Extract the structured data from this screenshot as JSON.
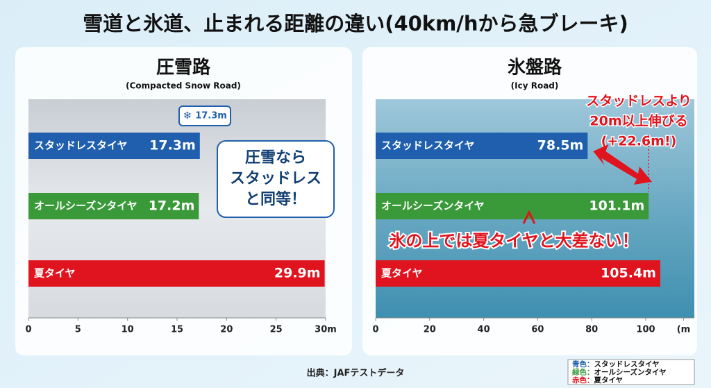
{
  "title": "雪道と氷道、止まれる距離の違い(40km/hから急ブレーキ)",
  "source": "出典：JAFテストデータ",
  "legend": [
    {
      "key": "青色：",
      "color": "#1f5fae",
      "name": "スタッドレスタイヤ"
    },
    {
      "key": "緑色：",
      "color": "#3a9a3a",
      "name": "オールシーズンタイヤ"
    },
    {
      "key": "赤色：",
      "color": "#e0141e",
      "name": "夏タイヤ"
    }
  ],
  "chart_data": [
    {
      "type": "bar",
      "orientation": "horizontal",
      "title": "圧雪路",
      "subtitle": "(Compacted Snow Road)",
      "categories": [
        "スタッドレスタイヤ",
        "オールシーズンタイヤ",
        "夏タイヤ"
      ],
      "values": [
        17.3,
        17.2,
        29.9
      ],
      "value_labels": [
        "17.3m",
        "17.2m",
        "29.9m"
      ],
      "colors": [
        "#1f5fae",
        "#3a9a3a",
        "#e0141e"
      ],
      "xlim": [
        0,
        30
      ],
      "xticks": [
        0,
        5,
        10,
        15,
        20,
        25,
        {
          "value": 30,
          "label": "30m"
        }
      ],
      "badge": "17.3m",
      "annotation": [
        "圧雪なら",
        "スタッドレス",
        "と同等！"
      ]
    },
    {
      "type": "bar",
      "orientation": "horizontal",
      "title": "氷盤路",
      "subtitle": "(Icy Road)",
      "categories": [
        "スタッドレスタイヤ",
        "オールシーズンタイヤ",
        "夏タイヤ"
      ],
      "values": [
        78.5,
        101.1,
        105.4
      ],
      "value_labels": [
        "78.5m",
        "101.1m",
        "105.4m"
      ],
      "colors": [
        "#1f5fae",
        "#3a9a3a",
        "#e0141e"
      ],
      "xlim": [
        0,
        118
      ],
      "xticks": [
        0,
        20,
        40,
        60,
        80,
        100,
        {
          "value": 114,
          "label": "(m"
        }
      ],
      "annotation": [
        "スタッドレスより",
        "20m以上伸びる",
        "(+22.6m!)"
      ],
      "note": "氷の上では夏タイヤと大差ない！"
    }
  ]
}
